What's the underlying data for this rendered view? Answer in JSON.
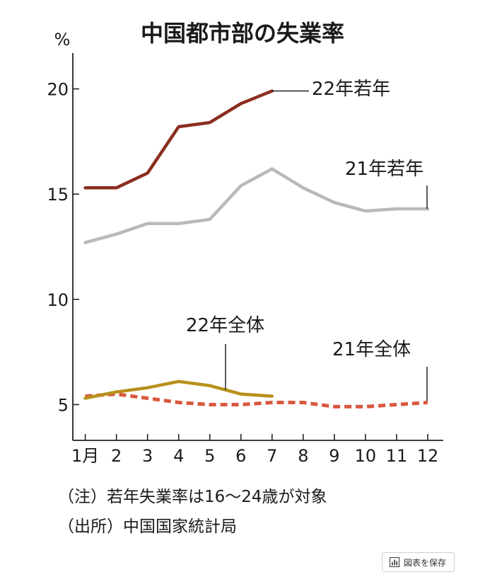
{
  "chart_data": {
    "type": "line",
    "title": "中国都市部の失業率",
    "ylabel": "%",
    "ylim": [
      3.3,
      21.7
    ],
    "xlim": [
      0.6,
      12.5
    ],
    "yticks": [
      5,
      10,
      15,
      20
    ],
    "yticklabels": [
      "5",
      "10",
      "15",
      "20"
    ],
    "xticks": [
      1,
      2,
      3,
      4,
      5,
      6,
      7,
      8,
      9,
      10,
      11,
      12
    ],
    "xticklabels": [
      "1月",
      "2",
      "3",
      "4",
      "5",
      "6",
      "7",
      "8",
      "9",
      "10",
      "11",
      "12"
    ],
    "series": [
      {
        "name": "22年若年",
        "color": "#8b2e1f",
        "dash": false,
        "x": [
          1,
          2,
          3,
          4,
          5,
          6,
          7
        ],
        "values": [
          15.3,
          15.3,
          16.0,
          18.2,
          18.4,
          19.3,
          19.9
        ]
      },
      {
        "name": "21年若年",
        "color": "#b9b9b9",
        "dash": false,
        "x": [
          1,
          2,
          3,
          4,
          5,
          6,
          7,
          8,
          9,
          10,
          11,
          12
        ],
        "values": [
          12.7,
          13.1,
          13.6,
          13.6,
          13.8,
          15.4,
          16.2,
          15.3,
          14.6,
          14.2,
          14.3,
          14.3
        ]
      },
      {
        "name": "22年全体",
        "color": "#b8901a",
        "dash": false,
        "x": [
          1,
          2,
          3,
          4,
          5,
          6,
          7
        ],
        "values": [
          5.3,
          5.6,
          5.8,
          6.1,
          5.9,
          5.5,
          5.4
        ]
      },
      {
        "name": "21年全体",
        "color": "#d9573e",
        "dash": true,
        "x": [
          1,
          2,
          3,
          4,
          5,
          6,
          7,
          8,
          9,
          10,
          11,
          12
        ],
        "values": [
          5.4,
          5.5,
          5.3,
          5.1,
          5.0,
          5.0,
          5.1,
          5.1,
          4.9,
          4.9,
          5.0,
          5.1
        ]
      }
    ]
  },
  "notes": {
    "note": "（注）若年失業率は16～24歳が対象",
    "source": "（出所）中国国家統計局"
  },
  "save_button": {
    "label": "図表を保存",
    "icon": "bar-chart-icon"
  }
}
